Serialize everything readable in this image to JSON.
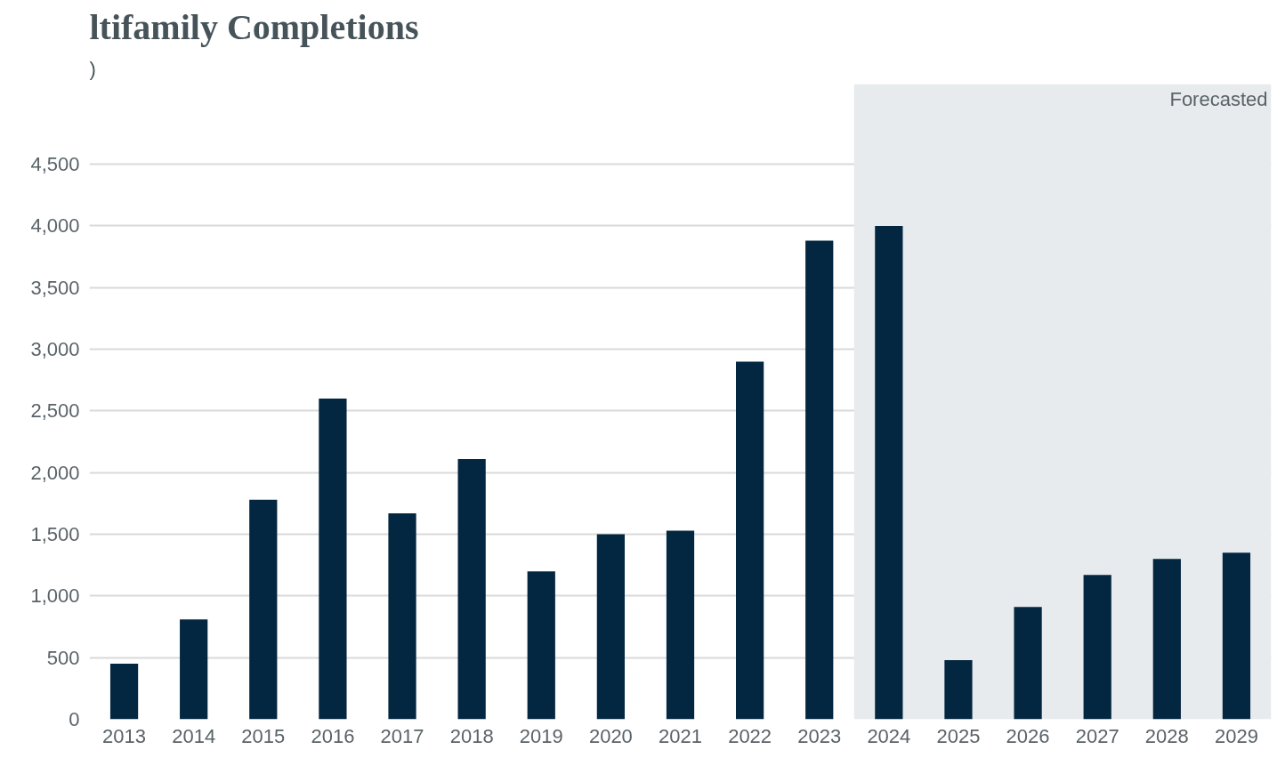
{
  "chart_data": {
    "type": "bar",
    "title": "ltifamily Completions",
    "subtitle": ")",
    "categories": [
      "2013",
      "2014",
      "2015",
      "2016",
      "2017",
      "2018",
      "2019",
      "2020",
      "2021",
      "2022",
      "2023",
      "2024",
      "2025",
      "2026",
      "2027",
      "2028",
      "2029"
    ],
    "series": [
      {
        "color": "#042741",
        "values": [
          450,
          810,
          1780,
          2600,
          1670,
          2110,
          1200,
          1500,
          1530,
          2900,
          3880,
          4000,
          480,
          910,
          1170,
          1300,
          1350
        ]
      }
    ],
    "ylim": [
      0,
      5150
    ],
    "yticks": [
      {
        "value": 0,
        "label": "0"
      },
      {
        "value": 500,
        "label": "500"
      },
      {
        "value": 1000,
        "label": "1,000"
      },
      {
        "value": 1500,
        "label": "1,500"
      },
      {
        "value": 2000,
        "label": "2,000"
      },
      {
        "value": 2500,
        "label": "2,500"
      },
      {
        "value": 3000,
        "label": "3,000"
      },
      {
        "value": 3500,
        "label": "3,500"
      },
      {
        "value": 4000,
        "label": "4,000"
      },
      {
        "value": 4500,
        "label": "4,500"
      }
    ],
    "grid": "y",
    "bands": [
      {
        "axis": "x",
        "from": "2024",
        "to": "2029",
        "label": "Forecasted",
        "color": "#e7ebed"
      }
    ]
  }
}
